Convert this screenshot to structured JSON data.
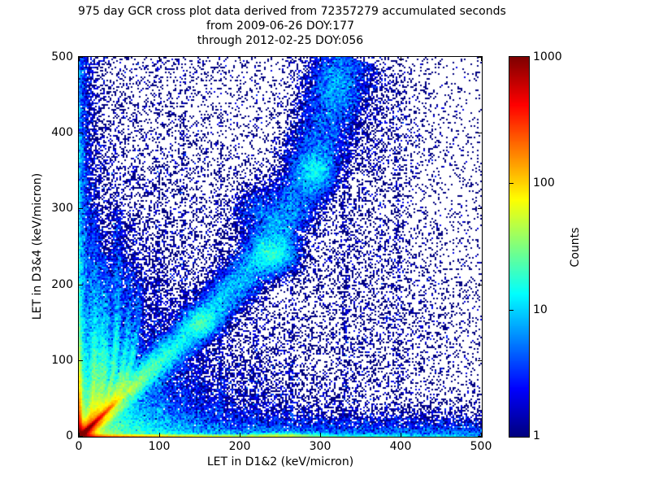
{
  "chart_data": {
    "type": "heatmap",
    "title_lines": [
      "975 day GCR cross plot data derived from 72357279 accumulated seconds",
      "from 2009-06-26 DOY:177",
      "through 2012-02-25 DOY:056"
    ],
    "xlabel": "LET in D1&2 (keV/micron)",
    "ylabel": "LET in D3&4 (keV/micron)",
    "xlim": [
      0,
      500
    ],
    "ylim": [
      0,
      500
    ],
    "x_ticks": [
      0,
      100,
      200,
      300,
      400,
      500
    ],
    "y_ticks": [
      0,
      100,
      200,
      300,
      400,
      500
    ],
    "grid": false,
    "background": "#ffffff",
    "frame_color": "#000000",
    "colorbar": {
      "label": "Counts",
      "scale": "log",
      "range": [
        1,
        1000
      ],
      "ticks": [
        1,
        10,
        100,
        1000
      ],
      "colormap": "jet",
      "position": "right"
    },
    "density_model": {
      "seed": 42,
      "bin_units": 2,
      "structures": [
        {
          "name": "origin-hotspot",
          "type": "exp2d",
          "n": 26000,
          "sx": 6,
          "sy": 6
        },
        {
          "name": "diagonal-core",
          "type": "line",
          "n": 48000,
          "p1": [
            0,
            0
          ],
          "p2": [
            80,
            80
          ],
          "decay": 18,
          "sig1": 1.2,
          "sig2": 2.2
        },
        {
          "name": "diagonal-halo",
          "type": "line",
          "n": 24000,
          "p1": [
            0,
            0
          ],
          "p2": [
            115,
            115
          ],
          "decay": 40,
          "sig1": 5,
          "sig2": 11
        },
        {
          "name": "diagonal-sub",
          "type": "line",
          "n": 7000,
          "p1": [
            2,
            0
          ],
          "p2": [
            70,
            52
          ],
          "decay": 22,
          "sig1": 1.5,
          "sig2": 3
        },
        {
          "name": "bottom-edge-line",
          "type": "line",
          "n": 26000,
          "p1": [
            0,
            1
          ],
          "p2": [
            500,
            1
          ],
          "decay": 110,
          "sig1": 1.3,
          "sig2": 1.8
        },
        {
          "name": "bottom-edge-bump",
          "type": "gauss2d",
          "n": 2400,
          "x": 250,
          "y": 2,
          "sx": 26,
          "sy": 2.2
        },
        {
          "name": "left-edge-line",
          "type": "line",
          "n": 13000,
          "p1": [
            1,
            0
          ],
          "p2": [
            1,
            330
          ],
          "decay": 34,
          "sig1": 1.3,
          "sig2": 2
        },
        {
          "name": "bottom-scatter",
          "type": "texp2d",
          "n": 12000,
          "x": {
            "s": 0,
            "a": 0,
            "b": 500
          },
          "y": {
            "s": 12,
            "a": 0,
            "b": 500
          }
        },
        {
          "name": "left-scatter",
          "type": "texp2d",
          "n": 10000,
          "x": {
            "s": 7,
            "a": 0,
            "b": 500
          },
          "y": {
            "s": 420,
            "a": 0,
            "b": 500
          }
        },
        {
          "name": "lower-left-cloud",
          "type": "exp2d",
          "n": 40000,
          "sx": 55,
          "sy": 55
        },
        {
          "name": "background-weighted",
          "type": "texp2d",
          "n": 14000,
          "x": {
            "s": 170,
            "a": 0,
            "b": 500
          },
          "y": {
            "s": 260,
            "a": 0,
            "b": 500
          }
        },
        {
          "name": "background-uniform",
          "type": "texp2d",
          "n": 5000,
          "x": {
            "s": 0,
            "a": 0,
            "b": 500
          },
          "y": {
            "s": 0,
            "a": 0,
            "b": 500
          }
        },
        {
          "name": "main-band",
          "type": "path",
          "n": 34000,
          "pts": [
            [
              60,
              60
            ],
            [
              150,
              150
            ],
            [
              212,
              218
            ],
            [
              255,
              280
            ],
            [
              288,
              355
            ],
            [
              312,
              430
            ],
            [
              332,
              500
            ]
          ],
          "decay": 800,
          "sig1": 8,
          "sig2": 24
        },
        {
          "name": "band-blob-1",
          "type": "gauss2d",
          "n": 2000,
          "x": 152,
          "y": 150,
          "sx": 12,
          "sy": 11
        },
        {
          "name": "band-blob-2",
          "type": "gauss2d",
          "n": 3800,
          "x": 243,
          "y": 240,
          "sx": 16,
          "sy": 14
        },
        {
          "name": "band-blob-3",
          "type": "gauss2d",
          "n": 2800,
          "x": 295,
          "y": 350,
          "sx": 13,
          "sy": 16
        },
        {
          "name": "band-blob-4",
          "type": "gauss2d",
          "n": 2000,
          "x": 318,
          "y": 462,
          "sx": 16,
          "sy": 22
        },
        {
          "name": "band-blob-5",
          "type": "gauss2d",
          "n": 1600,
          "x": 225,
          "y": 297,
          "sx": 20,
          "sy": 18
        },
        {
          "name": "band-fan-1",
          "type": "gauss2d",
          "n": 1600,
          "x": 350,
          "y": 300,
          "sx": 45,
          "sy": 110
        },
        {
          "name": "band-fan-2",
          "type": "gauss2d",
          "n": 900,
          "x": 390,
          "y": 150,
          "sx": 55,
          "sy": 60
        },
        {
          "name": "band-fan-3",
          "type": "gauss2d",
          "n": 900,
          "x": 370,
          "y": 430,
          "sx": 35,
          "sy": 50
        },
        {
          "name": "finger-1",
          "type": "finger",
          "n": 6500,
          "y0": 9,
          "X": 20,
          "tau": 30,
          "ymax": 300,
          "decay": 90,
          "sig": 1.6
        },
        {
          "name": "finger-2",
          "type": "finger",
          "n": 4500,
          "y0": 13,
          "X": 29,
          "tau": 35,
          "ymax": 240,
          "decay": 75,
          "sig": 1.6
        },
        {
          "name": "finger-3",
          "type": "finger",
          "n": 4000,
          "y0": 17,
          "X": 36,
          "tau": 38,
          "ymax": 240,
          "decay": 75,
          "sig": 1.6
        },
        {
          "name": "finger-4",
          "type": "finger",
          "n": 5500,
          "y0": 23,
          "X": 49,
          "tau": 45,
          "ymax": 300,
          "decay": 95,
          "sig": 1.6
        },
        {
          "name": "finger-5",
          "type": "finger",
          "n": 3800,
          "y0": 30,
          "X": 64,
          "tau": 50,
          "ymax": 230,
          "decay": 70,
          "sig": 1.6
        },
        {
          "name": "finger-6",
          "type": "finger",
          "n": 3200,
          "y0": 37,
          "X": 77,
          "tau": 55,
          "ymax": 210,
          "decay": 65,
          "sig": 1.6
        },
        {
          "name": "streak-99",
          "type": "line",
          "n": 280,
          "p1": [
            99,
            0
          ],
          "p2": [
            99,
            500
          ],
          "decay": 300,
          "sig1": 2.2,
          "sig2": 2.2
        },
        {
          "name": "streak-130",
          "type": "line",
          "n": 260,
          "p1": [
            130,
            0
          ],
          "p2": [
            130,
            500
          ],
          "decay": 300,
          "sig1": 2.2,
          "sig2": 2.2
        },
        {
          "name": "streak-176",
          "type": "line",
          "n": 260,
          "p1": [
            176,
            0
          ],
          "p2": [
            176,
            500
          ],
          "decay": 300,
          "sig1": 2.2,
          "sig2": 2.2
        },
        {
          "name": "streak-220",
          "type": "line",
          "n": 240,
          "p1": [
            220,
            0
          ],
          "p2": [
            220,
            500
          ],
          "decay": 300,
          "sig1": 2.2,
          "sig2": 2.2
        },
        {
          "name": "streak-264",
          "type": "line",
          "n": 240,
          "p1": [
            264,
            0
          ],
          "p2": [
            264,
            500
          ],
          "decay": 300,
          "sig1": 2.2,
          "sig2": 2.2
        },
        {
          "name": "streak-330",
          "type": "line",
          "n": 240,
          "p1": [
            330,
            0
          ],
          "p2": [
            330,
            500
          ],
          "decay": 300,
          "sig1": 2.2,
          "sig2": 2.2
        },
        {
          "name": "streak-396",
          "type": "line",
          "n": 220,
          "p1": [
            396,
            0
          ],
          "p2": [
            396,
            500
          ],
          "decay": 300,
          "sig1": 2.2,
          "sig2": 2.2
        }
      ]
    }
  }
}
